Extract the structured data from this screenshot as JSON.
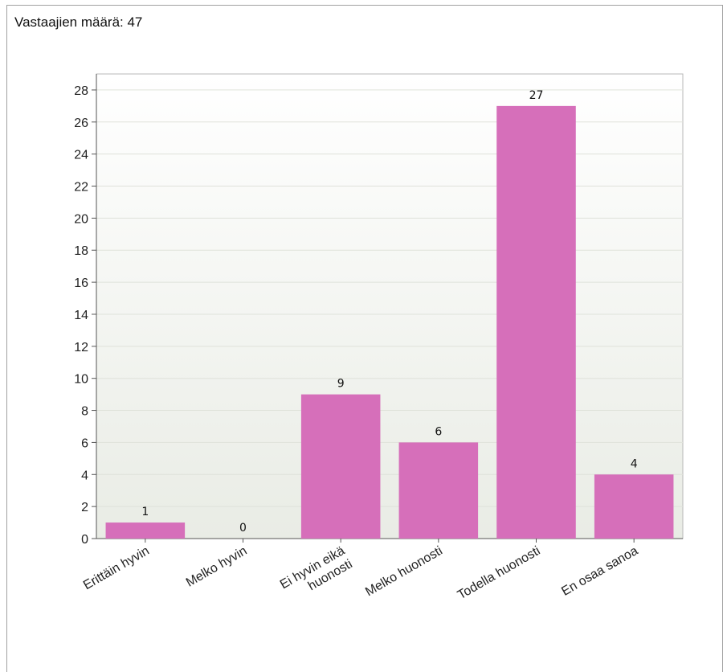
{
  "header": {
    "respondents_text": "Vastaajien määrä: 47"
  },
  "chart_data": {
    "type": "bar",
    "categories": [
      [
        "Erittäin hyvin"
      ],
      [
        "Melko hyvin"
      ],
      [
        "Ei hyvin eikä",
        "huonosti"
      ],
      [
        "Melko huonosti"
      ],
      [
        "Todella huonosti"
      ],
      [
        "En osaa sanoa"
      ]
    ],
    "values": [
      1,
      0,
      9,
      6,
      27,
      4
    ],
    "ylim": [
      0,
      29
    ],
    "yticks": [
      0,
      2,
      4,
      6,
      8,
      10,
      12,
      14,
      16,
      18,
      20,
      22,
      24,
      26,
      28
    ],
    "grid": true,
    "bar_color": "#d66fba",
    "plot_gradient_top": "#ffffff",
    "plot_gradient_bottom": "#e9ece5",
    "gridline_color": "#dfe2da"
  }
}
